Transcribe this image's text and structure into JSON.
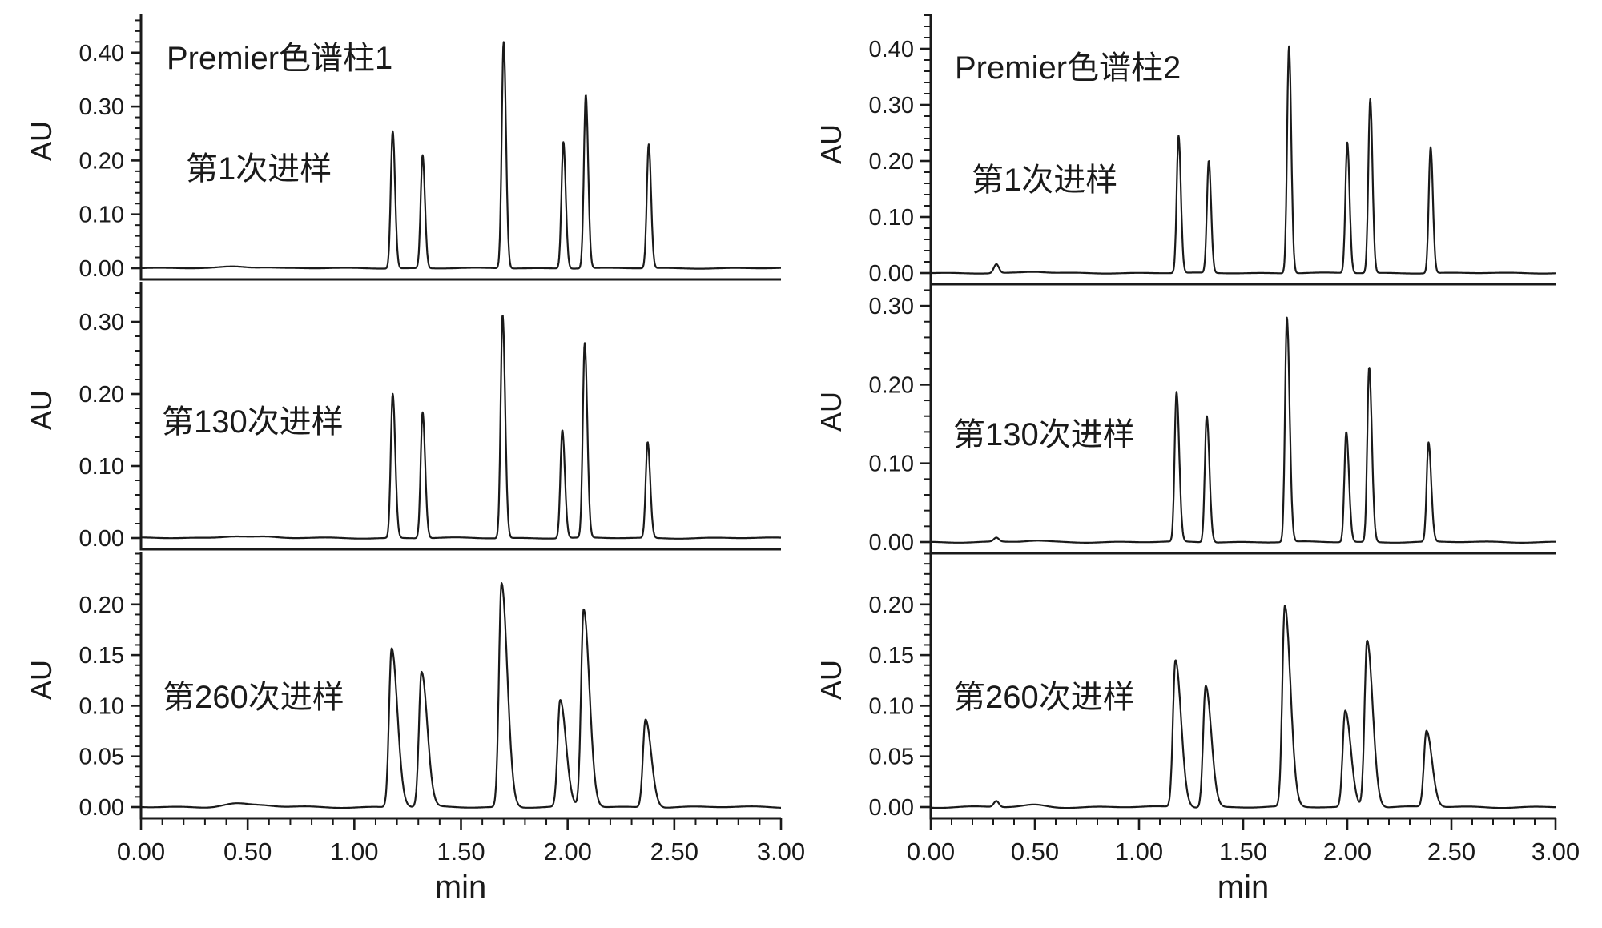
{
  "chart_data": [
    {
      "type": "line",
      "panel_id": "column1-injection-1",
      "column_title": "Premier色谱柱1",
      "sample_label": "第1次进样",
      "ylabel": "AU",
      "xlabel": "min",
      "xlim": [
        0,
        3
      ],
      "ylim": [
        0,
        0.47
      ],
      "x_tick_values": [
        0,
        0.5,
        1,
        1.5,
        2,
        2.5,
        3
      ],
      "x_tick_labels": [
        "0.00",
        "0.50",
        "1.00",
        "1.50",
        "2.00",
        "2.50",
        "3.00"
      ],
      "x_minor_step": 0.1,
      "y_tick_values": [
        0,
        0.1,
        0.2,
        0.3,
        0.4
      ],
      "y_tick_labels": [
        "0.00",
        "0.10",
        "0.20",
        "0.30",
        "0.40"
      ],
      "y_minor_step": 0.02,
      "peaks": [
        {
          "t": 1.18,
          "h": 0.255
        },
        {
          "t": 1.32,
          "h": 0.21
        },
        {
          "t": 1.7,
          "h": 0.42
        },
        {
          "t": 1.98,
          "h": 0.235
        },
        {
          "t": 2.085,
          "h": 0.322
        },
        {
          "t": 2.38,
          "h": 0.23
        }
      ],
      "peak_shape": {
        "sigma_left": 0.009,
        "sigma_right": 0.011
      },
      "baseline_bumps": [
        {
          "t": 0.44,
          "h": 0.0035,
          "w": 0.06
        },
        {
          "t": 0.58,
          "h": 0.0015,
          "w": 0.05
        }
      ]
    },
    {
      "type": "line",
      "panel_id": "column1-injection-130",
      "column_title": null,
      "sample_label": "第130次进样",
      "ylabel": "AU",
      "xlabel": null,
      "xlim": [
        0,
        3
      ],
      "ylim": [
        0,
        0.345
      ],
      "x_tick_values": [
        0,
        0.5,
        1,
        1.5,
        2,
        2.5,
        3
      ],
      "x_tick_labels": [],
      "x_minor_step": 0.1,
      "y_tick_values": [
        0,
        0.1,
        0.2,
        0.3
      ],
      "y_tick_labels": [
        "0.00",
        "0.10",
        "0.20",
        "0.30"
      ],
      "y_minor_step": 0.02,
      "peaks": [
        {
          "t": 1.18,
          "h": 0.2
        },
        {
          "t": 1.32,
          "h": 0.175
        },
        {
          "t": 1.695,
          "h": 0.31
        },
        {
          "t": 1.975,
          "h": 0.15
        },
        {
          "t": 2.08,
          "h": 0.27
        },
        {
          "t": 2.375,
          "h": 0.133
        }
      ],
      "peak_shape": {
        "sigma_left": 0.009,
        "sigma_right": 0.012
      },
      "baseline_bumps": [
        {
          "t": 0.44,
          "h": 0.003,
          "w": 0.06
        },
        {
          "t": 0.58,
          "h": 0.0015,
          "w": 0.05
        }
      ]
    },
    {
      "type": "line",
      "panel_id": "column1-injection-260",
      "column_title": null,
      "sample_label": "第260次进样",
      "ylabel": "AU",
      "xlabel": "min",
      "xlim": [
        0,
        3
      ],
      "ylim": [
        0,
        0.25
      ],
      "x_tick_values": [
        0,
        0.5,
        1,
        1.5,
        2,
        2.5,
        3
      ],
      "x_tick_labels": [
        "0.00",
        "0.50",
        "1.00",
        "1.50",
        "2.00",
        "2.50",
        "3.00"
      ],
      "x_minor_step": 0.1,
      "y_tick_values": [
        0,
        0.05,
        0.1,
        0.15,
        0.2
      ],
      "y_tick_labels": [
        "0.00",
        "0.05",
        "0.10",
        "0.15",
        "0.20"
      ],
      "y_minor_step": 0.01,
      "peaks": [
        {
          "t": 1.175,
          "h": 0.157
        },
        {
          "t": 1.315,
          "h": 0.133
        },
        {
          "t": 1.69,
          "h": 0.221
        },
        {
          "t": 1.965,
          "h": 0.105
        },
        {
          "t": 2.075,
          "h": 0.195
        },
        {
          "t": 2.365,
          "h": 0.087
        }
      ],
      "peak_shape": {
        "sigma_left": 0.012,
        "sigma_right": 0.027
      },
      "baseline_bumps": [
        {
          "t": 0.44,
          "h": 0.0035,
          "w": 0.06
        },
        {
          "t": 0.58,
          "h": 0.0015,
          "w": 0.05
        }
      ]
    },
    {
      "type": "line",
      "panel_id": "column2-injection-1",
      "column_title": "Premier色谱柱2",
      "sample_label": "第1次进样",
      "ylabel": "AU",
      "xlabel": null,
      "xlim": [
        0,
        3
      ],
      "ylim": [
        0,
        0.46
      ],
      "x_tick_values": [
        0,
        0.5,
        1,
        1.5,
        2,
        2.5,
        3
      ],
      "x_tick_labels": [],
      "x_minor_step": 0.1,
      "y_tick_values": [
        0,
        0.1,
        0.2,
        0.3,
        0.4
      ],
      "y_tick_labels": [
        "0.00",
        "0.10",
        "0.20",
        "0.30",
        "0.40"
      ],
      "y_minor_step": 0.02,
      "peaks": [
        {
          "t": 1.19,
          "h": 0.245
        },
        {
          "t": 1.335,
          "h": 0.2
        },
        {
          "t": 1.72,
          "h": 0.405
        },
        {
          "t": 2.0,
          "h": 0.233
        },
        {
          "t": 2.11,
          "h": 0.31
        },
        {
          "t": 2.4,
          "h": 0.225
        }
      ],
      "peak_shape": {
        "sigma_left": 0.009,
        "sigma_right": 0.011
      },
      "baseline_bumps": [
        {
          "t": 0.315,
          "h": 0.016,
          "w": 0.012
        },
        {
          "t": 0.5,
          "h": 0.002,
          "w": 0.05
        }
      ]
    },
    {
      "type": "line",
      "panel_id": "column2-injection-130",
      "column_title": null,
      "sample_label": "第130次进样",
      "ylabel": "AU",
      "xlabel": null,
      "xlim": [
        0,
        3
      ],
      "ylim": [
        0,
        0.33
      ],
      "x_tick_values": [
        0,
        0.5,
        1,
        1.5,
        2,
        2.5,
        3
      ],
      "x_tick_labels": [],
      "x_minor_step": 0.1,
      "y_tick_values": [
        0,
        0.1,
        0.2,
        0.3
      ],
      "y_tick_labels": [
        "0.00",
        "0.10",
        "0.20",
        "0.30"
      ],
      "y_minor_step": 0.02,
      "peaks": [
        {
          "t": 1.18,
          "h": 0.19
        },
        {
          "t": 1.325,
          "h": 0.161
        },
        {
          "t": 1.71,
          "h": 0.285
        },
        {
          "t": 1.995,
          "h": 0.14
        },
        {
          "t": 2.105,
          "h": 0.222
        },
        {
          "t": 2.39,
          "h": 0.126
        }
      ],
      "peak_shape": {
        "sigma_left": 0.009,
        "sigma_right": 0.013
      },
      "baseline_bumps": [
        {
          "t": 0.315,
          "h": 0.005,
          "w": 0.012
        },
        {
          "t": 0.5,
          "h": 0.0015,
          "w": 0.05
        }
      ]
    },
    {
      "type": "line",
      "panel_id": "column2-injection-260",
      "column_title": null,
      "sample_label": "第260次进样",
      "ylabel": "AU",
      "xlabel": "min",
      "xlim": [
        0,
        3
      ],
      "ylim": [
        0,
        0.25
      ],
      "x_tick_values": [
        0,
        0.5,
        1,
        1.5,
        2,
        2.5,
        3
      ],
      "x_tick_labels": [
        "0.00",
        "0.50",
        "1.00",
        "1.50",
        "2.00",
        "2.50",
        "3.00"
      ],
      "x_minor_step": 0.1,
      "y_tick_values": [
        0,
        0.05,
        0.1,
        0.15,
        0.2
      ],
      "y_tick_labels": [
        "0.00",
        "0.05",
        "0.10",
        "0.15",
        "0.20"
      ],
      "y_minor_step": 0.01,
      "peaks": [
        {
          "t": 1.175,
          "h": 0.145
        },
        {
          "t": 1.32,
          "h": 0.12
        },
        {
          "t": 1.7,
          "h": 0.198
        },
        {
          "t": 1.99,
          "h": 0.095
        },
        {
          "t": 2.095,
          "h": 0.165
        },
        {
          "t": 2.38,
          "h": 0.075
        }
      ],
      "peak_shape": {
        "sigma_left": 0.012,
        "sigma_right": 0.027
      },
      "baseline_bumps": [
        {
          "t": 0.315,
          "h": 0.006,
          "w": 0.012
        },
        {
          "t": 0.5,
          "h": 0.002,
          "w": 0.05
        }
      ]
    }
  ],
  "style": {
    "trace_color": "#1a1a1a",
    "axis_color": "#1a1a1a",
    "background": "#ffffff"
  }
}
